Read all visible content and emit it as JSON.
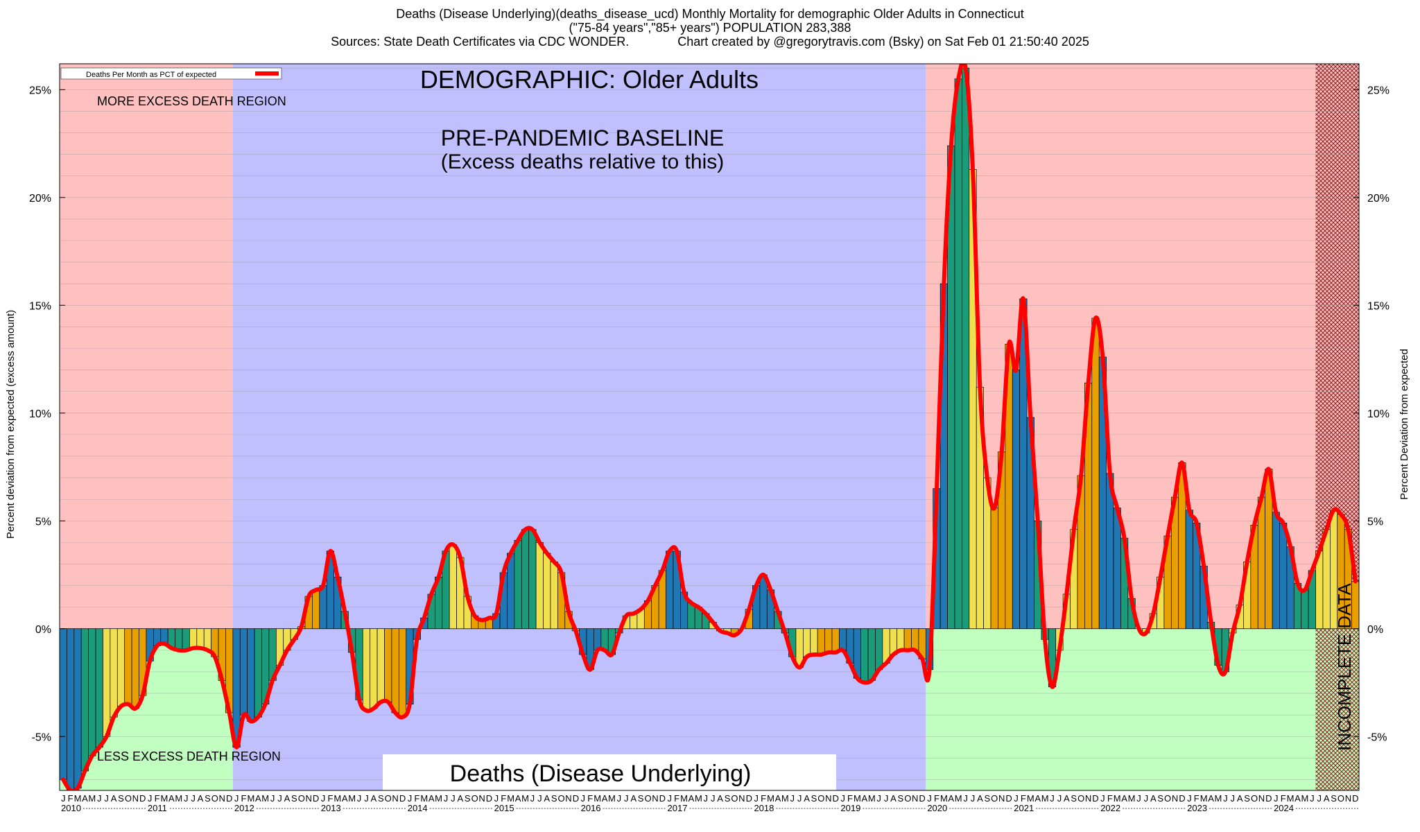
{
  "header": {
    "line1": "Deaths (Disease Underlying)(deaths_disease_ucd) Monthly Mortality for demographic Older Adults in Connecticut",
    "line2": "(\"75-84 years\",\"85+ years\") POPULATION 283,388",
    "line3": "Sources: State Death Certificates via CDC WONDER.              Chart created by @gregorytravis.com (Bsky) on Sat Feb 01 21:50:40 2025"
  },
  "annotations": {
    "demographic": "DEMOGRAPHIC: Older Adults",
    "baseline_line1": "PRE-PANDEMIC BASELINE",
    "baseline_line2": "(Excess deaths relative to this)",
    "more_region": "MORE EXCESS DEATH REGION",
    "less_region": "LESS EXCESS DEATH REGION",
    "incomplete": "INCOMPLETE DATA",
    "bottom_label": "Deaths (Disease Underlying)"
  },
  "colors": {
    "pink": "#ffc0c0",
    "lavender": "#c0c0ff",
    "green_region": "#c0ffc0",
    "line": "#ff0000",
    "bar_palette": [
      "#1f77b4",
      "#1a9c7a",
      "#f0e050",
      "#e8a000"
    ]
  },
  "chart_data": {
    "type": "bar",
    "title": "",
    "ylabel": "Percent deviation from expected (excess amount)",
    "ylabel_right": "Percent Deviation from expected",
    "legend": {
      "label": "Deaths Per Month as PCT of expected",
      "placement": "top-left"
    },
    "ylim": [
      -7.5,
      26.2
    ],
    "yticks": [
      25,
      20,
      15,
      10,
      5,
      0,
      -5
    ],
    "ytick_labels": [
      "25%",
      "20%",
      "15%",
      "10%",
      "5%",
      "0%",
      "-5%"
    ],
    "month_letters": [
      "J",
      "F",
      "M",
      "A",
      "M",
      "J",
      "J",
      "A",
      "S",
      "O",
      "N",
      "D"
    ],
    "years": [
      "2010",
      "2011",
      "2012",
      "2013",
      "2014",
      "2015",
      "2016",
      "2017",
      "2018",
      "2019",
      "2020",
      "2021",
      "2022",
      "2023",
      "2024"
    ],
    "x_start": "2010-01",
    "regions": [
      {
        "start": "2010-01",
        "end": "2012-01",
        "type": "pink_over_green"
      },
      {
        "start": "2012-01",
        "end": "2020-01",
        "type": "lavender"
      },
      {
        "start": "2020-01",
        "end": "2024-07",
        "type": "pink_over_green"
      },
      {
        "start": "2024-07",
        "end": "2025-01",
        "type": "incomplete"
      }
    ],
    "values": [
      -7.0,
      -7.5,
      -7.4,
      -6.6,
      -5.9,
      -5.5,
      -5.0,
      -4.1,
      -3.6,
      -3.5,
      -3.7,
      -3.1,
      -1.5,
      -0.8,
      -0.7,
      -0.9,
      -1.0,
      -1.0,
      -0.9,
      -0.9,
      -1.0,
      -1.3,
      -2.4,
      -3.9,
      -5.5,
      -4.0,
      -4.3,
      -4.1,
      -3.5,
      -2.4,
      -1.7,
      -1.0,
      -0.5,
      0.1,
      1.5,
      1.8,
      2.0,
      3.6,
      2.4,
      0.8,
      -1.1,
      -3.3,
      -3.8,
      -3.7,
      -3.4,
      -3.4,
      -3.9,
      -4.1,
      -3.5,
      -0.5,
      0.5,
      1.6,
      2.4,
      3.6,
      3.9,
      3.3,
      1.5,
      0.6,
      0.4,
      0.5,
      0.7,
      2.6,
      3.5,
      4.1,
      4.6,
      4.6,
      4.0,
      3.5,
      3.1,
      2.6,
      0.8,
      -0.1,
      -1.2,
      -1.9,
      -1.0,
      -1.0,
      -1.2,
      -0.2,
      0.6,
      0.7,
      0.9,
      1.3,
      2.0,
      2.7,
      3.6,
      3.6,
      1.7,
      1.2,
      1.0,
      0.7,
      0.3,
      -0.1,
      -0.2,
      -0.3,
      0.0,
      0.9,
      2.0,
      2.5,
      1.8,
      0.8,
      -0.2,
      -1.3,
      -1.8,
      -1.3,
      -1.2,
      -1.2,
      -1.1,
      -1.1,
      -1.0,
      -1.6,
      -2.3,
      -2.5,
      -2.4,
      -1.9,
      -1.6,
      -1.2,
      -1.0,
      -1.0,
      -1.0,
      -1.4,
      -1.9,
      6.5,
      16.0,
      22.4,
      25.5,
      26.0,
      21.3,
      11.2,
      7.0,
      5.6,
      8.2,
      13.2,
      12.0,
      15.3,
      9.8,
      5.0,
      -0.5,
      -2.7,
      -1.0,
      1.6,
      4.6,
      7.1,
      11.4,
      14.4,
      12.6,
      7.2,
      5.6,
      4.2,
      1.4,
      0.0,
      -0.2,
      0.7,
      2.4,
      4.3,
      6.1,
      7.7,
      5.5,
      4.9,
      2.9,
      0.3,
      -1.7,
      -2.0,
      -0.2,
      1.1,
      3.1,
      4.8,
      6.1,
      7.4,
      5.4,
      4.9,
      3.8,
      2.1,
      1.8,
      2.7,
      3.6,
      4.6,
      5.5,
      5.3,
      4.6,
      2.2
    ]
  }
}
